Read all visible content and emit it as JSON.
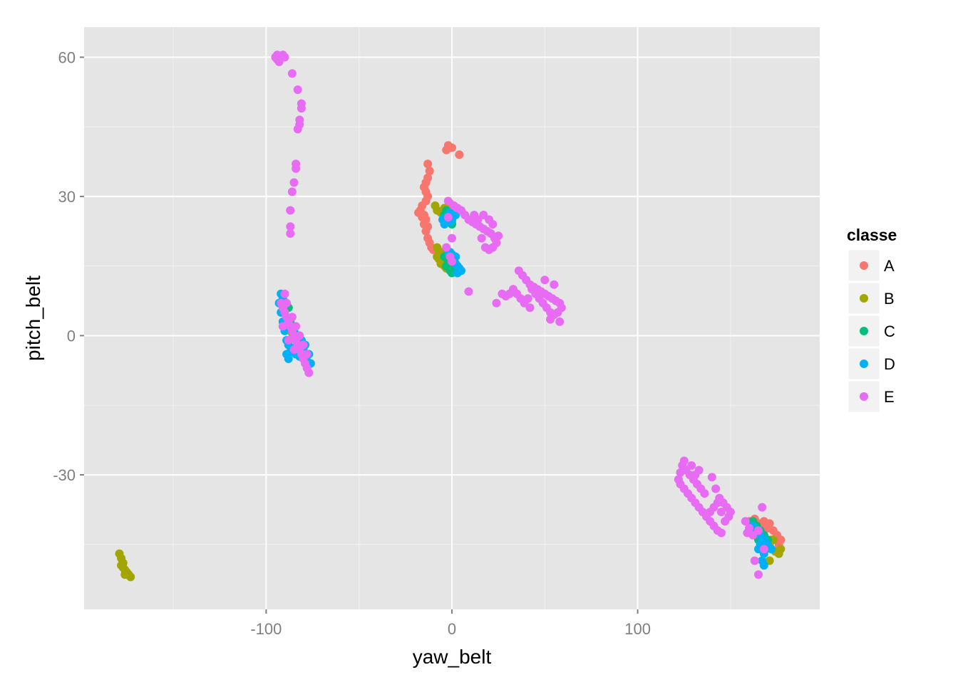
{
  "chart_data": {
    "type": "scatter",
    "title": "",
    "xlabel": "yaw_belt",
    "ylabel": "pitch_belt",
    "xlim": [
      -198,
      198
    ],
    "ylim": [
      -59,
      66.5
    ],
    "x_ticks": [
      -100,
      0,
      100
    ],
    "x_tick_labels": [
      "-100",
      "0",
      "100"
    ],
    "y_ticks": [
      -30,
      0,
      30,
      60
    ],
    "y_tick_labels": [
      "-30",
      "0",
      "30",
      "60"
    ],
    "grid": true,
    "background": "#E5E5E5",
    "legend": {
      "title": "classe",
      "position": "right",
      "entries": [
        "A",
        "B",
        "C",
        "D",
        "E"
      ]
    },
    "series": [
      {
        "name": "A",
        "color": "#F8766D",
        "points": [
          [
            -2,
            41
          ],
          [
            0,
            40.5
          ],
          [
            -3,
            40
          ],
          [
            4,
            39
          ],
          [
            -13,
            37
          ],
          [
            -12,
            35.5
          ],
          [
            -13,
            34
          ],
          [
            -14,
            33
          ],
          [
            -15,
            32
          ],
          [
            -14,
            31
          ],
          [
            -13,
            30
          ],
          [
            -14,
            29
          ],
          [
            -1,
            28.5
          ],
          [
            1,
            28
          ],
          [
            -2,
            27.5
          ],
          [
            -1,
            26.5
          ],
          [
            -16,
            28
          ],
          [
            -17,
            27
          ],
          [
            -18,
            26.5
          ],
          [
            -16,
            25.5
          ],
          [
            -15,
            24
          ],
          [
            -14,
            22.5
          ],
          [
            -13,
            21
          ],
          [
            -12,
            20
          ],
          [
            -11,
            19
          ],
          [
            -10,
            18.5
          ],
          [
            -15,
            26
          ],
          [
            -14,
            25
          ],
          [
            -13,
            23.5
          ],
          [
            160,
            -40
          ],
          [
            163,
            -39.5
          ],
          [
            165,
            -40.5
          ],
          [
            168,
            -40
          ],
          [
            170,
            -41.5
          ],
          [
            173,
            -42
          ],
          [
            175,
            -43
          ],
          [
            177,
            -44
          ],
          [
            176,
            -45
          ],
          [
            172,
            -44
          ],
          [
            168,
            -43
          ],
          [
            166,
            -41
          ],
          [
            162,
            -41
          ],
          [
            171,
            -40.5
          ]
        ]
      },
      {
        "name": "B",
        "color": "#A3A500",
        "points": [
          [
            -9,
            28
          ],
          [
            -8,
            27
          ],
          [
            -6,
            26.5
          ],
          [
            -2,
            25.5
          ],
          [
            0,
            24.5
          ],
          [
            -4,
            27.5
          ],
          [
            -8,
            19
          ],
          [
            -7,
            18
          ],
          [
            -6,
            17.5
          ],
          [
            -5,
            16
          ],
          [
            -4,
            15
          ],
          [
            -3,
            14.5
          ],
          [
            -6,
            15.5
          ],
          [
            -7,
            16.5
          ],
          [
            -5,
            18
          ],
          [
            -8,
            17
          ],
          [
            -89,
            3
          ],
          [
            -90,
            1.5
          ],
          [
            -86,
            0.5
          ],
          [
            -84,
            -1
          ],
          [
            -179,
            -47
          ],
          [
            -178,
            -48
          ],
          [
            -177,
            -49
          ],
          [
            -177,
            -50
          ],
          [
            -176,
            -50.5
          ],
          [
            -175,
            -51
          ],
          [
            -174,
            -51.5
          ],
          [
            -173,
            -52
          ],
          [
            -178,
            -49.5
          ],
          [
            -176,
            -51.5
          ],
          [
            162,
            -42
          ],
          [
            165,
            -43
          ],
          [
            168,
            -44
          ],
          [
            171,
            -45
          ],
          [
            174,
            -46.5
          ],
          [
            176,
            -47
          ],
          [
            177,
            -46
          ],
          [
            171,
            -48.5
          ],
          [
            169,
            -46
          ],
          [
            166,
            -45.5
          ],
          [
            173,
            -44
          ]
        ]
      },
      {
        "name": "C",
        "color": "#00BF7D",
        "points": [
          [
            -4,
            26
          ],
          [
            -2,
            25
          ],
          [
            0,
            24
          ],
          [
            -3,
            27
          ],
          [
            -1,
            26
          ],
          [
            -3,
            15
          ],
          [
            -1,
            14
          ],
          [
            0,
            13.5
          ],
          [
            -2,
            16
          ],
          [
            1,
            15
          ],
          [
            -4,
            17
          ],
          [
            -88,
            6
          ],
          [
            -89,
            4
          ],
          [
            -90,
            7
          ],
          [
            -87,
            3
          ],
          [
            162,
            -40
          ],
          [
            164,
            -41
          ],
          [
            166,
            -42
          ],
          [
            168,
            -43
          ],
          [
            165,
            -44
          ],
          [
            170,
            -44
          ]
        ]
      },
      {
        "name": "D",
        "color": "#00B0F6",
        "points": [
          [
            -5,
            25
          ],
          [
            -3,
            25.5
          ],
          [
            -1,
            24.5
          ],
          [
            0,
            25
          ],
          [
            2,
            26
          ],
          [
            -4,
            24
          ],
          [
            -1,
            26.5
          ],
          [
            -2,
            18
          ],
          [
            0,
            17.5
          ],
          [
            1,
            16.5
          ],
          [
            2,
            15.5
          ],
          [
            3,
            15
          ],
          [
            4,
            14.5
          ],
          [
            5,
            14
          ],
          [
            3,
            13.5
          ],
          [
            -1,
            18
          ],
          [
            2,
            17
          ],
          [
            -92,
            9
          ],
          [
            -91,
            8
          ],
          [
            -93,
            7
          ],
          [
            -92,
            5
          ],
          [
            -91,
            3
          ],
          [
            -90,
            1
          ],
          [
            -89,
            -1
          ],
          [
            -88,
            -2
          ],
          [
            -86,
            -3
          ],
          [
            -84,
            -4
          ],
          [
            -82,
            -4.5
          ],
          [
            -80,
            -5
          ],
          [
            -78,
            -5.5
          ],
          [
            -77,
            -4
          ],
          [
            -79,
            -2
          ],
          [
            -81,
            -1
          ],
          [
            -83,
            0
          ],
          [
            -85,
            1
          ],
          [
            -87,
            -3.5
          ],
          [
            -88,
            -5
          ],
          [
            -89,
            -4
          ],
          [
            -84,
            -2.5
          ],
          [
            -80,
            -3
          ],
          [
            -76,
            -6
          ],
          [
            162,
            -41
          ],
          [
            164,
            -42
          ],
          [
            166,
            -43
          ],
          [
            168,
            -44
          ],
          [
            170,
            -45
          ],
          [
            165,
            -46
          ],
          [
            168,
            -47
          ],
          [
            172,
            -46
          ],
          [
            167,
            -48.5
          ],
          [
            168,
            -49.5
          ],
          [
            166,
            -45
          ]
        ]
      },
      {
        "name": "E",
        "color": "#E76BF3",
        "points": [
          [
            -95,
            60
          ],
          [
            -94,
            59.5
          ],
          [
            -93,
            59
          ],
          [
            -92,
            60
          ],
          [
            -91,
            60.5
          ],
          [
            -90,
            60
          ],
          [
            -94,
            60.5
          ],
          [
            -86,
            56.5
          ],
          [
            -83,
            53
          ],
          [
            -81,
            50
          ],
          [
            -81,
            49
          ],
          [
            -82,
            46.5
          ],
          [
            -82,
            45.5
          ],
          [
            -83,
            44.5
          ],
          [
            -84,
            37
          ],
          [
            -84,
            36
          ],
          [
            -85,
            33
          ],
          [
            -86,
            31
          ],
          [
            -87,
            27
          ],
          [
            -87,
            23.5
          ],
          [
            -87,
            22
          ],
          [
            -92,
            7
          ],
          [
            -91,
            6
          ],
          [
            -90,
            5
          ],
          [
            -89,
            4
          ],
          [
            -88,
            3
          ],
          [
            -87,
            2
          ],
          [
            -86,
            1
          ],
          [
            -85,
            0
          ],
          [
            -84,
            -1
          ],
          [
            -83,
            -2
          ],
          [
            -82,
            -3
          ],
          [
            -81,
            -4
          ],
          [
            -80,
            -5
          ],
          [
            -79,
            -6
          ],
          [
            -78,
            -7
          ],
          [
            -77,
            -8
          ],
          [
            -90,
            9
          ],
          [
            -89,
            7
          ],
          [
            -86,
            4
          ],
          [
            -84,
            2
          ],
          [
            -82,
            0
          ],
          [
            -80,
            -2
          ],
          [
            -78,
            -4
          ],
          [
            -91,
            2
          ],
          [
            -88,
            -1
          ],
          [
            -85,
            -3
          ],
          [
            -2,
            29
          ],
          [
            1,
            28
          ],
          [
            3,
            27.5
          ],
          [
            5,
            27
          ],
          [
            7,
            26
          ],
          [
            9,
            25
          ],
          [
            11,
            24.5
          ],
          [
            13,
            24
          ],
          [
            15,
            23.5
          ],
          [
            17,
            23
          ],
          [
            19,
            22.5
          ],
          [
            21,
            22
          ],
          [
            23,
            21
          ],
          [
            24,
            20
          ],
          [
            22,
            19
          ],
          [
            20,
            18.5
          ],
          [
            18,
            19
          ],
          [
            16,
            21
          ],
          [
            14,
            25
          ],
          [
            12,
            26
          ],
          [
            17,
            26
          ],
          [
            20,
            25
          ],
          [
            22,
            24
          ],
          [
            25,
            21.5
          ],
          [
            -2,
            25.5
          ],
          [
            0,
            21
          ],
          [
            -1,
            17
          ],
          [
            0,
            16
          ],
          [
            -3,
            19
          ],
          [
            9,
            9.5
          ],
          [
            24,
            7
          ],
          [
            36,
            14
          ],
          [
            38,
            13
          ],
          [
            40,
            12
          ],
          [
            42,
            11
          ],
          [
            44,
            10.5
          ],
          [
            46,
            10
          ],
          [
            48,
            9.5
          ],
          [
            50,
            9
          ],
          [
            52,
            8.5
          ],
          [
            54,
            8
          ],
          [
            56,
            7.5
          ],
          [
            58,
            7
          ],
          [
            59,
            6
          ],
          [
            57,
            5
          ],
          [
            55,
            4.5
          ],
          [
            53,
            5
          ],
          [
            51,
            6
          ],
          [
            49,
            7
          ],
          [
            47,
            8
          ],
          [
            45,
            9
          ],
          [
            43,
            10
          ],
          [
            41,
            8
          ],
          [
            39,
            7
          ],
          [
            37,
            8
          ],
          [
            35,
            9
          ],
          [
            33,
            10
          ],
          [
            31,
            9
          ],
          [
            29,
            8.5
          ],
          [
            27,
            9
          ],
          [
            50,
            12
          ],
          [
            55,
            11
          ],
          [
            53,
            3.5
          ],
          [
            42,
            6
          ],
          [
            58,
            3
          ],
          [
            125,
            -27
          ],
          [
            124,
            -28
          ],
          [
            123,
            -29.5
          ],
          [
            122,
            -31
          ],
          [
            123,
            -32
          ],
          [
            125,
            -33
          ],
          [
            127,
            -34
          ],
          [
            129,
            -35
          ],
          [
            131,
            -36
          ],
          [
            133,
            -37
          ],
          [
            135,
            -38
          ],
          [
            137,
            -39
          ],
          [
            139,
            -40
          ],
          [
            141,
            -41
          ],
          [
            143,
            -42
          ],
          [
            145,
            -42.5
          ],
          [
            128,
            -30
          ],
          [
            130,
            -31
          ],
          [
            132,
            -32
          ],
          [
            134,
            -33
          ],
          [
            136,
            -34
          ],
          [
            126,
            -29
          ],
          [
            129,
            -28
          ],
          [
            131,
            -30
          ],
          [
            133,
            -29
          ],
          [
            140,
            -30.5
          ],
          [
            142,
            -33
          ],
          [
            144,
            -35
          ],
          [
            146,
            -36
          ],
          [
            148,
            -37
          ],
          [
            149,
            -39
          ],
          [
            147,
            -40
          ],
          [
            150,
            -38
          ],
          [
            145,
            -38
          ],
          [
            143,
            -36
          ],
          [
            141,
            -37
          ],
          [
            139,
            -38
          ],
          [
            158,
            -40
          ],
          [
            160,
            -41.5
          ],
          [
            162,
            -43
          ],
          [
            165,
            -42
          ],
          [
            168,
            -46
          ],
          [
            163,
            -48.5
          ],
          [
            165,
            -51.5
          ],
          [
            167,
            -37
          ],
          [
            159,
            -42.5
          ]
        ]
      }
    ]
  }
}
